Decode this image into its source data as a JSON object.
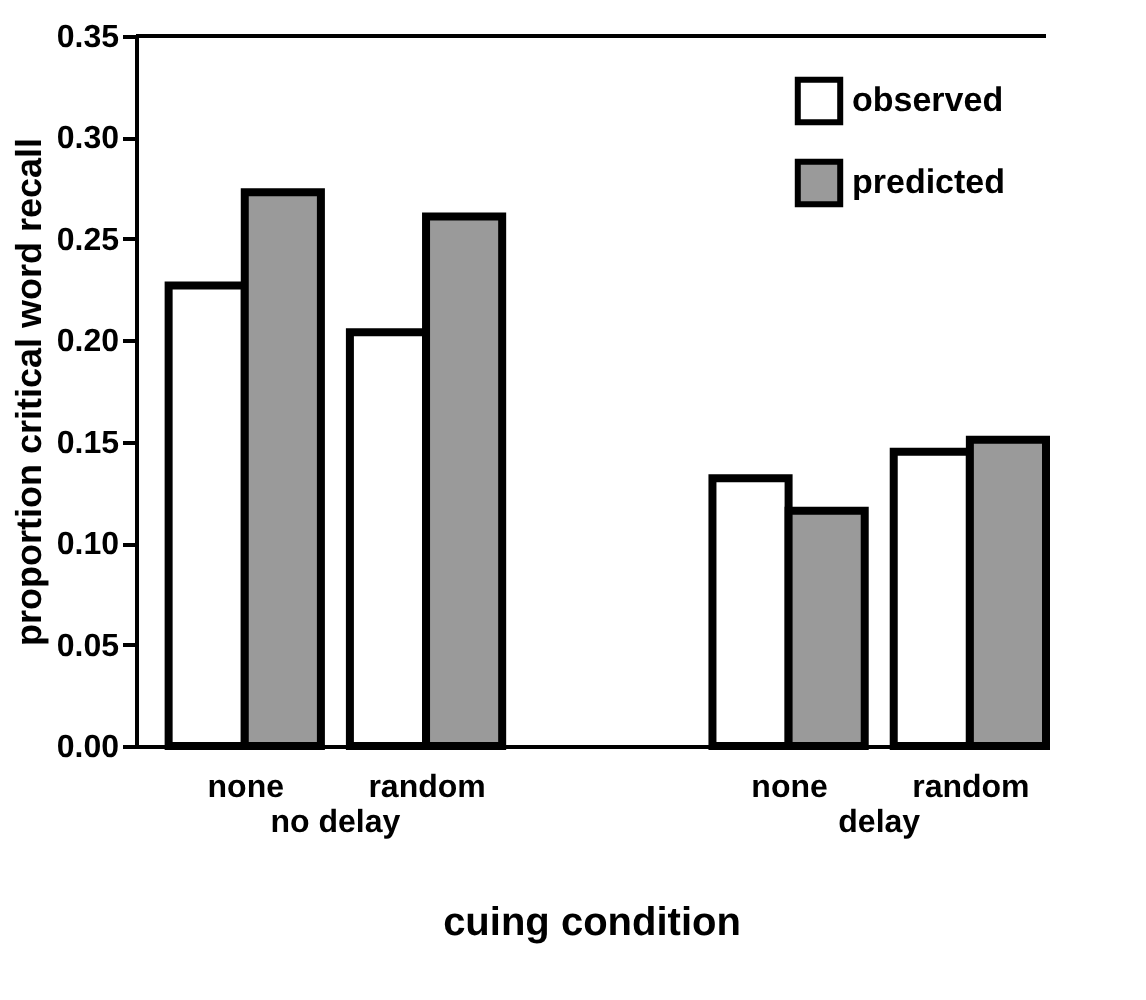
{
  "chart_data": {
    "type": "bar",
    "xlabel": "cuing condition",
    "ylabel": "proportion critical word recall",
    "categories": [
      "none",
      "random",
      "none",
      "random"
    ],
    "series": [
      {
        "name": "observed",
        "color": "#ffffff",
        "values": [
          0.227,
          0.204,
          0.132,
          0.145
        ]
      },
      {
        "name": "predicted",
        "color": "#9a9a9a",
        "values": [
          0.273,
          0.261,
          0.116,
          0.151
        ]
      }
    ],
    "annotations": [
      "no delay",
      "delay"
    ],
    "ylim": [
      0,
      0.35
    ],
    "yticks": [
      {
        "value": 0,
        "label": "0.00"
      },
      0.05,
      {
        "value": 0.1,
        "label": "0.10"
      },
      0.15,
      {
        "value": 0.2,
        "label": "0.20"
      },
      0.25,
      {
        "value": 0.3,
        "label": "0.30"
      },
      0.35
    ],
    "grid": false,
    "legend": "top right"
  }
}
